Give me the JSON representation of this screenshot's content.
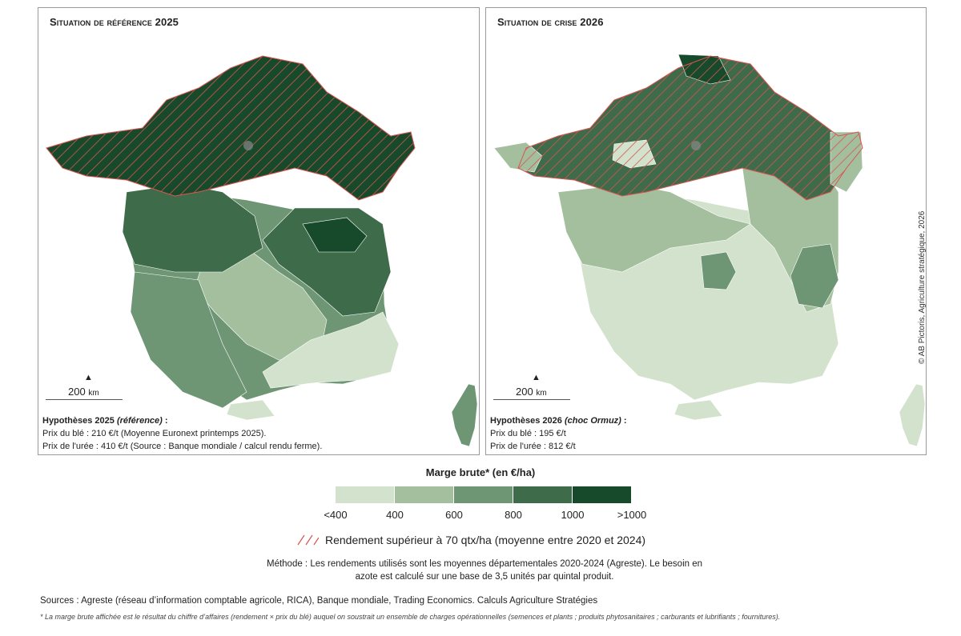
{
  "maps": {
    "left": {
      "title_prefix": "Situation de référence",
      "title_year": "2025",
      "scale_label": "200",
      "scale_unit": "km",
      "hyp_title": "Hypothèses 2025",
      "hyp_title_em": "(référence)",
      "hyp_title_end": " :",
      "line1": "Prix du blé : 210 €/t (Moyenne Euronext printemps 2025).",
      "line2": "Prix de l'urée : 410 €/t (Source : Banque mondiale / calcul rendu ferme)."
    },
    "right": {
      "title_prefix": "Situation de crise",
      "title_year": "2026",
      "scale_label": "200",
      "scale_unit": "km",
      "hyp_title": "Hypothèses 2026",
      "hyp_title_em": "(choc Ormuz)",
      "hyp_title_end": " :",
      "line1": "Prix du blé : 195 €/t",
      "line2": "Prix de l'urée : 812 €/t"
    }
  },
  "copyright": "© AB Pictoris, Agriculture stratégique, 2026",
  "legend": {
    "title": "Marge brute* (en €/ha)",
    "classes": [
      {
        "color": "#d3e2cc"
      },
      {
        "color": "#a3bf9e"
      },
      {
        "color": "#6e9675"
      },
      {
        "color": "#3e6b4a"
      },
      {
        "color": "#164a2b"
      }
    ],
    "ticks": [
      "<400",
      "400",
      "600",
      "800",
      "1000",
      ">1000"
    ],
    "hatch_label": "Rendement supérieur à 70 qtx/ha (moyenne entre 2020 et 2024)",
    "hatch_color": "#c0504d"
  },
  "methode": "Méthode : Les rendements utilisés sont les moyennes départementales 2020-2024 (Agreste). Le besoin en azote est calculé sur une base de 3,5 unités par quintal produit.",
  "sources": "Sources : Agreste (réseau d’information comptable agricole, RICA), Banque mondiale, Trading Economics. Calculs Agriculture Stratégies",
  "footnote": "* La marge brute affichée est le résultat du chiffre d’affaires (rendement × prix du blé) auquel on soustrait un ensemble de charges opérationnelles (semences et plants ; produits phytosanitaires ; carburants et lubrifiants ; fournitures)."
}
